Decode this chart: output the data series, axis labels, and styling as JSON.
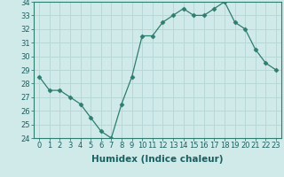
{
  "x": [
    0,
    1,
    2,
    3,
    4,
    5,
    6,
    7,
    8,
    9,
    10,
    11,
    12,
    13,
    14,
    15,
    16,
    17,
    18,
    19,
    20,
    21,
    22,
    23
  ],
  "y": [
    28.5,
    27.5,
    27.5,
    27.0,
    26.5,
    25.5,
    24.5,
    24.0,
    26.5,
    28.5,
    31.5,
    31.5,
    32.5,
    33.0,
    33.5,
    33.0,
    33.0,
    33.5,
    34.0,
    32.5,
    32.0,
    30.5,
    29.5,
    29.0
  ],
  "xlabel": "Humidex (Indice chaleur)",
  "ylim": [
    24,
    34
  ],
  "xlim": [
    -0.5,
    23.5
  ],
  "yticks": [
    24,
    25,
    26,
    27,
    28,
    29,
    30,
    31,
    32,
    33,
    34
  ],
  "xticks": [
    0,
    1,
    2,
    3,
    4,
    5,
    6,
    7,
    8,
    9,
    10,
    11,
    12,
    13,
    14,
    15,
    16,
    17,
    18,
    19,
    20,
    21,
    22,
    23
  ],
  "line_color": "#2e7d6e",
  "marker": "D",
  "marker_size": 2.5,
  "bg_color": "#d0eaea",
  "grid_color": "#b8d8d8",
  "label_fontsize": 7.5,
  "tick_fontsize": 6.0
}
